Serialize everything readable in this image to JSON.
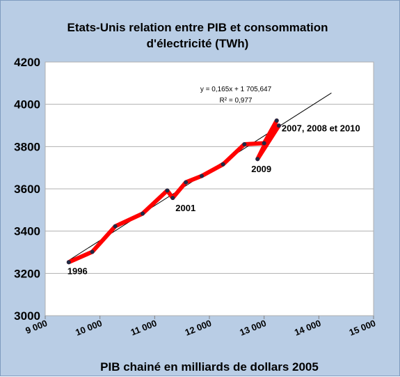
{
  "chart_data": {
    "type": "line",
    "title": [
      "Etats-Unis relation entre PIB et  consommation",
      "d'électricité (TWh)"
    ],
    "xlabel": "PIB chainé en milliards de dollars 2005",
    "ylabel": "",
    "xlim": [
      9000,
      15000
    ],
    "ylim": [
      3000,
      4200
    ],
    "x_ticks": [
      9000,
      10000,
      11000,
      12000,
      13000,
      14000,
      15000
    ],
    "x_tick_labels": [
      "9 000",
      "10 000",
      "11 000",
      "12 000",
      "13 000",
      "14 000",
      "15 000"
    ],
    "y_ticks": [
      3000,
      3200,
      3400,
      3600,
      3800,
      4000,
      4200
    ],
    "y_tick_labels": [
      "3000",
      "3200",
      "3400",
      "3600",
      "3800",
      "4000",
      "4200"
    ],
    "grid": {
      "horizontal": true,
      "vertical": false
    },
    "legend": "none",
    "series": [
      {
        "values": [
          {
            "x": 9430,
            "y": 3253
          },
          {
            "x": 9860,
            "y": 3302
          },
          {
            "x": 10280,
            "y": 3423
          },
          {
            "x": 10780,
            "y": 3483
          },
          {
            "x": 11230,
            "y": 3592
          },
          {
            "x": 11330,
            "y": 3557
          },
          {
            "x": 11570,
            "y": 3631
          },
          {
            "x": 11860,
            "y": 3661
          },
          {
            "x": 12250,
            "y": 3716
          },
          {
            "x": 12640,
            "y": 3811
          },
          {
            "x": 13000,
            "y": 3816
          },
          {
            "x": 13230,
            "y": 3923
          },
          {
            "x": 12880,
            "y": 3741
          },
          {
            "x": 13270,
            "y": 3899
          }
        ]
      }
    ],
    "trendline": {
      "equation": "y = 0,165x + 1 705,647",
      "r2": "R² = 0,977",
      "slope": 0.165,
      "intercept": 1705.647,
      "x_range": [
        9430,
        14230
      ]
    },
    "annotations": [
      {
        "text": "1996",
        "x": 9430,
        "y": 3253
      },
      {
        "text": "2001",
        "x": 11330,
        "y": 3557
      },
      {
        "text": "2009",
        "x": 12880,
        "y": 3741
      },
      {
        "text": "2007, 2008 et 2010",
        "x": 13270,
        "y": 3899
      }
    ],
    "colors": {
      "background": "#b9cde5",
      "plot_area": "#ffffff",
      "series_line": "#ff0000",
      "marker": "#1f2a44",
      "trendline": "#000000",
      "grid": "#b0b0b0"
    }
  }
}
